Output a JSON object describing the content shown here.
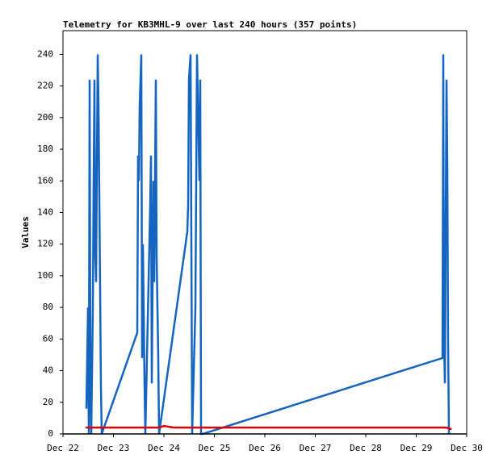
{
  "chart_data": {
    "type": "line",
    "title": "Telemetry for KB3MHL-9 over last 240 hours (357 points)",
    "y_label": "Values",
    "xlim": [
      22,
      30
    ],
    "xticks": [
      {
        "value": 22,
        "label": "Dec 22"
      },
      {
        "value": 23,
        "label": "Dec 23"
      },
      {
        "value": 24,
        "label": "Dec 24"
      },
      {
        "value": 25,
        "label": "Dec 25"
      },
      {
        "value": 26,
        "label": "Dec 26"
      },
      {
        "value": 27,
        "label": "Dec 27"
      },
      {
        "value": 28,
        "label": "Dec 28"
      },
      {
        "value": 29,
        "label": "Dec 29"
      },
      {
        "value": 30,
        "label": "Dec 30"
      }
    ],
    "ylim": [
      0,
      255
    ],
    "yticks": [
      0,
      20,
      40,
      60,
      80,
      100,
      120,
      140,
      160,
      180,
      200,
      220,
      240
    ],
    "grid": false,
    "series": [
      {
        "color": "#1565c0",
        "x": [
          22.464,
          22.496,
          22.512,
          22.528,
          22.544,
          22.56,
          22.592,
          22.608,
          22.624,
          22.64,
          22.656,
          22.688,
          22.704,
          22.72,
          22.736,
          22.752,
          22.768,
          23.472,
          23.488,
          23.504,
          23.52,
          23.552,
          23.568,
          23.584,
          23.616,
          23.632,
          23.728,
          23.744,
          23.76,
          23.792,
          23.808,
          23.84,
          23.856,
          23.888,
          23.904,
          24.464,
          24.48,
          24.496,
          24.528,
          24.544,
          24.56,
          24.624,
          24.656,
          24.704,
          24.72,
          24.736,
          24.768,
          29.52,
          29.536,
          29.552,
          29.568,
          29.6,
          29.616,
          29.632,
          29.648
        ],
        "values": [
          16,
          80,
          0,
          224,
          32,
          0,
          80,
          160,
          224,
          112,
          96,
          240,
          208,
          150,
          90,
          30,
          0,
          64,
          176,
          160,
          208,
          240,
          48,
          120,
          32,
          0,
          144,
          176,
          32,
          160,
          96,
          224,
          112,
          48,
          0,
          128,
          144,
          224,
          240,
          120,
          0,
          80,
          240,
          160,
          224,
          0,
          0,
          48,
          240,
          56,
          32,
          224,
          168,
          56,
          0
        ]
      },
      {
        "color": "#e00000",
        "x": [
          22.45,
          23.9,
          24.0,
          24.2,
          29.6,
          29.7
        ],
        "values": [
          4,
          4,
          5,
          4,
          4,
          3
        ]
      }
    ]
  }
}
